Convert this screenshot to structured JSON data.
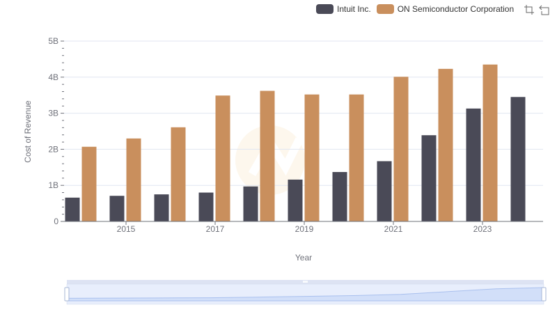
{
  "chart_data": {
    "type": "bar",
    "title": "",
    "xlabel": "Year",
    "ylabel": "Cost of Revenue",
    "categories": [
      "2014",
      "2015",
      "2016",
      "2017",
      "2018",
      "2019",
      "2020",
      "2021",
      "2022",
      "2023",
      "2024"
    ],
    "x_tick_labels": [
      "2015",
      "2017",
      "2019",
      "2021",
      "2023"
    ],
    "y_tick_labels": [
      "0",
      "1B",
      "2B",
      "3B",
      "4B",
      "5B"
    ],
    "ylim": [
      0,
      5000000000
    ],
    "grid": true,
    "legend_position": "top-right",
    "series": [
      {
        "name": "Intuit Inc.",
        "color": "#4a4a57",
        "values": [
          660000000,
          710000000,
          750000000,
          800000000,
          970000000,
          1160000000,
          1370000000,
          1670000000,
          2390000000,
          3130000000,
          3450000000
        ]
      },
      {
        "name": "ON Semiconductor Corporation",
        "color": "#c98f5d",
        "values": [
          2070000000,
          2300000000,
          2610000000,
          3490000000,
          3620000000,
          3520000000,
          3520000000,
          4010000000,
          4230000000,
          4350000000,
          null
        ]
      }
    ]
  },
  "legend": {
    "items": [
      "Intuit Inc.",
      "ON Semiconductor Corporation"
    ]
  },
  "toolbox": {
    "icons": [
      "zoom-icon",
      "restore-icon"
    ]
  },
  "colors": {
    "grid": "#e0e6f1",
    "axis": "#6e7079",
    "slider_fill": "#d2dff9",
    "slider_bg": "#e8eefc"
  }
}
